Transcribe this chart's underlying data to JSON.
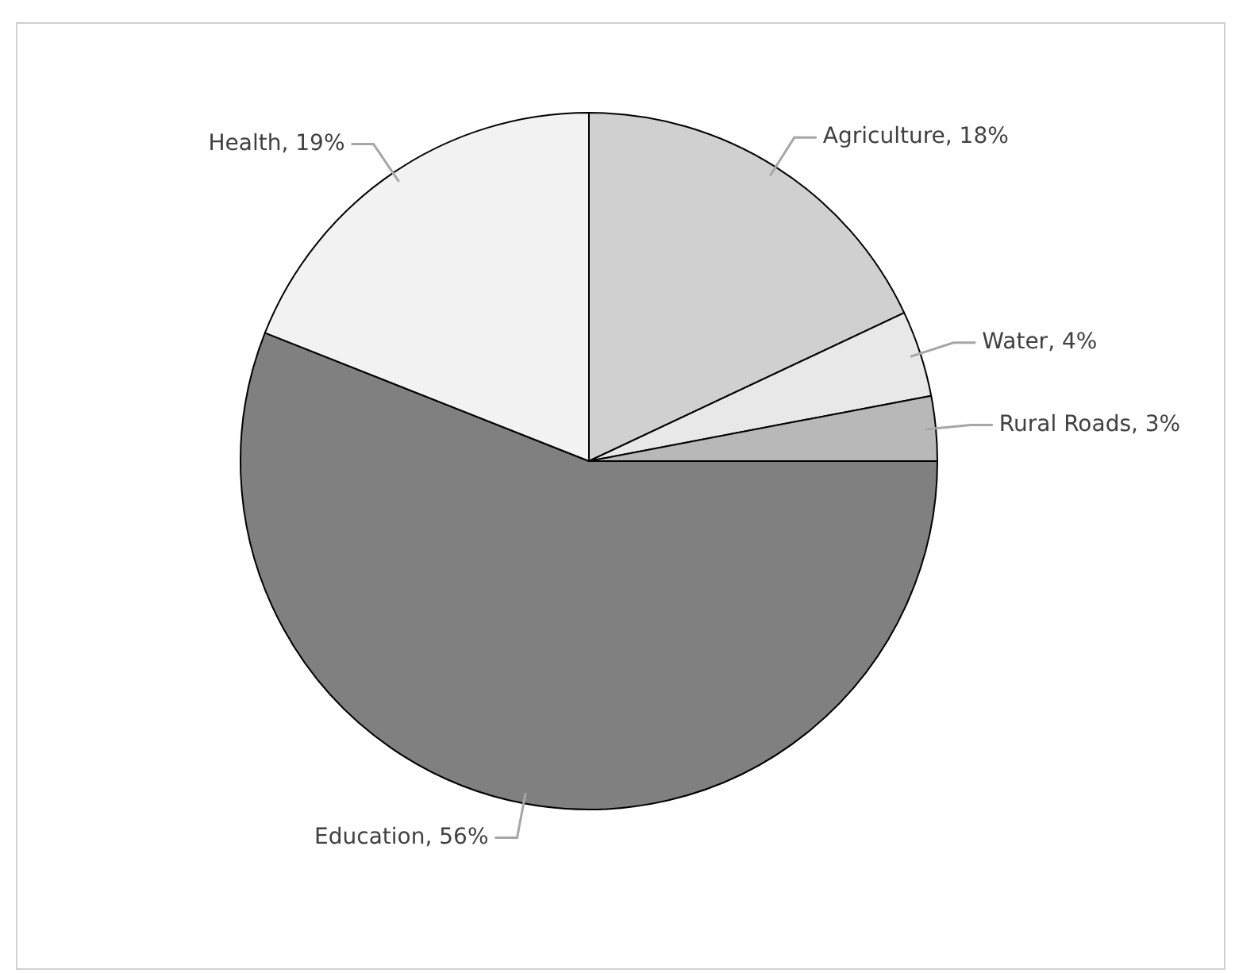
{
  "chart_data": {
    "type": "pie",
    "categories": [
      "Agriculture",
      "Water",
      "Rural Roads",
      "Education",
      "Health"
    ],
    "values": [
      18,
      4,
      3,
      56,
      19
    ],
    "colors": [
      "#d0d0d0",
      "#e8e8e8",
      "#b8b8b8",
      "#808080",
      "#f2f2f2"
    ],
    "value_labels": [
      "18%",
      "4%",
      "3%",
      "56%",
      "19%"
    ],
    "legend": false
  }
}
